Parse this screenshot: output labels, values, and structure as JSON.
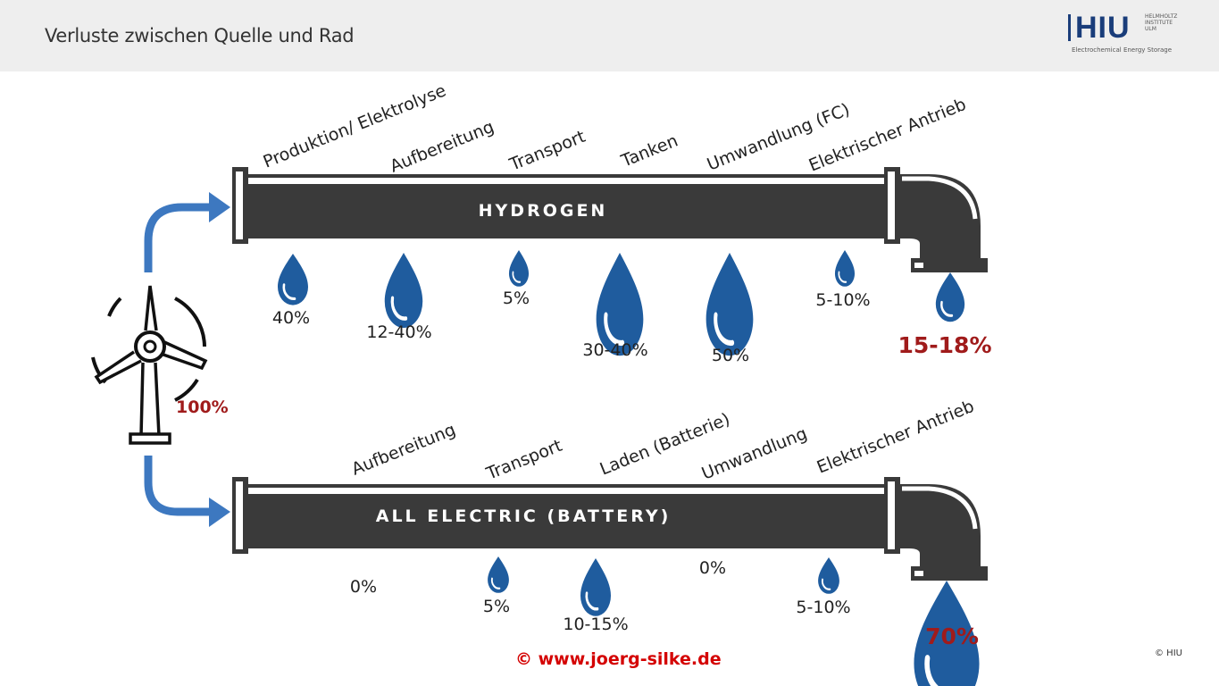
{
  "header": {
    "title": "Verluste zwischen Quelle und Rad",
    "logo": {
      "text": "HIU",
      "small": "HELMHOLTZ INSTITUTE ULM",
      "subtitle": "Electrochemical Energy Storage"
    }
  },
  "source": {
    "icon": "wind-turbine-icon",
    "value": "100%"
  },
  "hydrogen": {
    "label": "HYDROGEN",
    "stages": [
      "Produktion/ Elektrolyse",
      "Aufbereitung",
      "Transport",
      "Tanken",
      "Umwandlung (FC)",
      "Elektrischer Antrieb"
    ],
    "losses": [
      "40%",
      "12-40%",
      "5%",
      "30-40%",
      "50%",
      "5-10%"
    ],
    "result": "15-18%"
  },
  "battery": {
    "label": "ALL ELECTRIC (BATTERY)",
    "stages": [
      "Aufbereitung",
      "Transport",
      "Laden (Batterie)",
      "Umwandlung",
      "Elektrischer Antrieb"
    ],
    "losses": [
      "0%",
      "5%",
      "10-15%",
      "0%",
      "5-10%"
    ],
    "result": "70%"
  },
  "footer": {
    "copyright": "© www.joerg-silke.de",
    "credit": "© HIU"
  },
  "colors": {
    "pipe": "#3a3a3a",
    "drop": "#1f5c9e",
    "arrow": "#3d78c0",
    "result": "#a01b1b",
    "watermark": "#d40000"
  }
}
